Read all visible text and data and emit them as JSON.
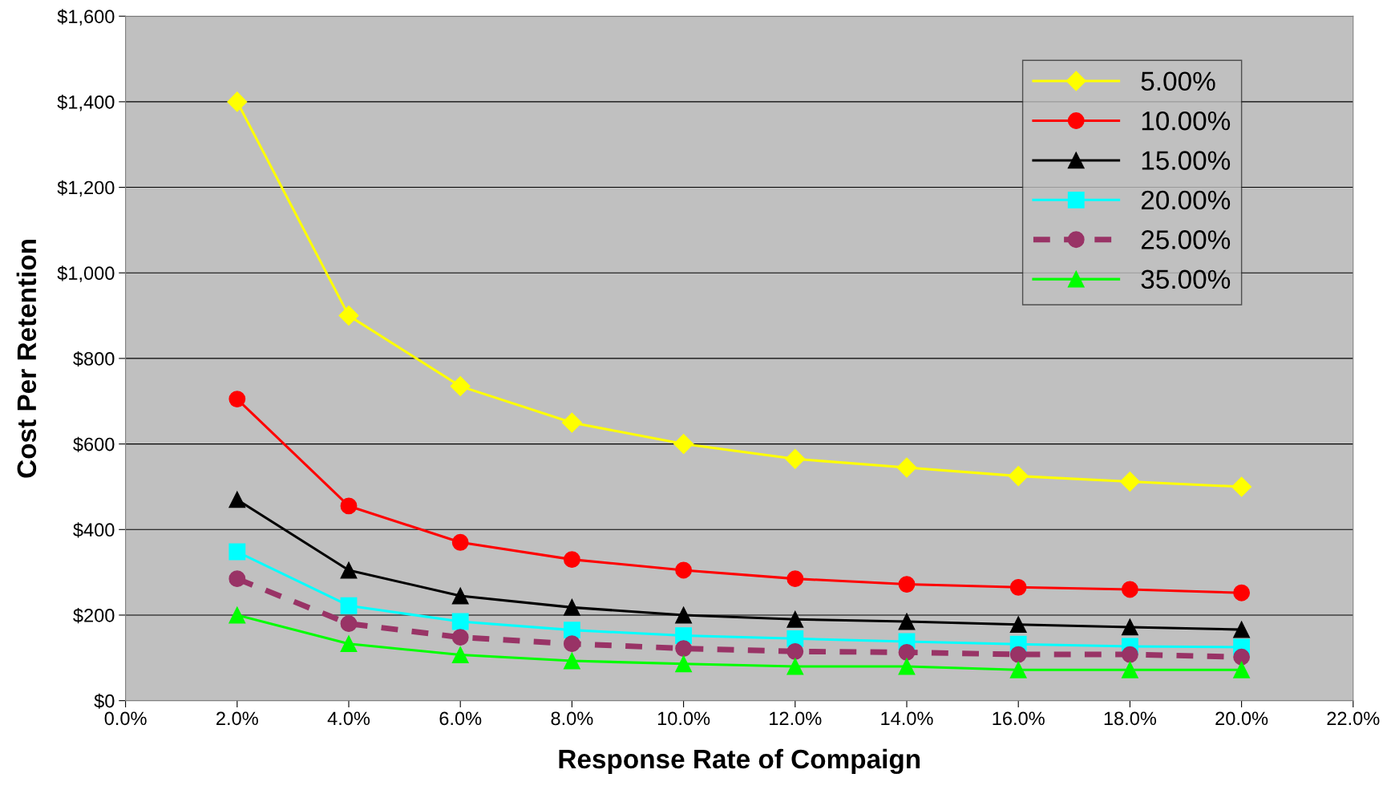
{
  "chart_data": {
    "type": "line",
    "xlabel": "Response Rate of Compaign",
    "ylabel": "Cost Per Retention",
    "x": [
      2,
      4,
      6,
      8,
      10,
      12,
      14,
      16,
      18,
      20
    ],
    "xlim": [
      0,
      22
    ],
    "xticks": [
      {
        "value": 0,
        "label": "0.0%"
      },
      {
        "value": 2,
        "label": "2.0%"
      },
      {
        "value": 4,
        "label": "4.0%"
      },
      {
        "value": 6,
        "label": "6.0%"
      },
      {
        "value": 8,
        "label": "8.0%"
      },
      {
        "value": 10,
        "label": "10.0%"
      },
      {
        "value": 12,
        "label": "12.0%"
      },
      {
        "value": 14,
        "label": "14.0%"
      },
      {
        "value": 16,
        "label": "16.0%"
      },
      {
        "value": 18,
        "label": "18.0%"
      },
      {
        "value": 20,
        "label": "20.0%"
      },
      {
        "value": 22,
        "label": "22.0%"
      }
    ],
    "ylim": [
      0,
      1600
    ],
    "yticks": [
      {
        "value": 0,
        "label": "$0"
      },
      {
        "value": 200,
        "label": "$200"
      },
      {
        "value": 400,
        "label": "$400"
      },
      {
        "value": 600,
        "label": "$600"
      },
      {
        "value": 800,
        "label": "$800"
      },
      {
        "value": 1000,
        "label": "$1,000"
      },
      {
        "value": 1200,
        "label": "$1,200"
      },
      {
        "value": 1400,
        "label": "$1,400"
      },
      {
        "value": 1600,
        "label": "$1,600"
      }
    ],
    "grid": "y",
    "legend": "top right",
    "series": [
      {
        "name": "5.00%",
        "color": "#ffff00",
        "marker": "diamond",
        "line_style": "solid",
        "values": [
          1400,
          900,
          735,
          650,
          600,
          565,
          545,
          525,
          512,
          500
        ]
      },
      {
        "name": "10.00%",
        "color": "#ff0000",
        "marker": "circle",
        "line_style": "solid",
        "values": [
          705,
          455,
          370,
          330,
          305,
          285,
          272,
          265,
          260,
          252
        ]
      },
      {
        "name": "15.00%",
        "color": "#000000",
        "marker": "triangle",
        "line_style": "solid",
        "values": [
          470,
          305,
          245,
          218,
          200,
          190,
          185,
          178,
          172,
          166
        ]
      },
      {
        "name": "20.00%",
        "color": "#00ffff",
        "marker": "square",
        "line_style": "solid",
        "values": [
          348,
          222,
          185,
          165,
          152,
          145,
          138,
          132,
          127,
          125
        ]
      },
      {
        "name": "25.00%",
        "color": "#993366",
        "marker": "circle",
        "line_style": "dashed",
        "values": [
          285,
          180,
          148,
          133,
          122,
          115,
          113,
          108,
          108,
          102
        ]
      },
      {
        "name": "35.00%",
        "color": "#00ff00",
        "marker": "triangle",
        "line_style": "solid",
        "values": [
          200,
          133,
          107,
          93,
          86,
          80,
          80,
          72,
          72,
          72
        ]
      }
    ]
  }
}
